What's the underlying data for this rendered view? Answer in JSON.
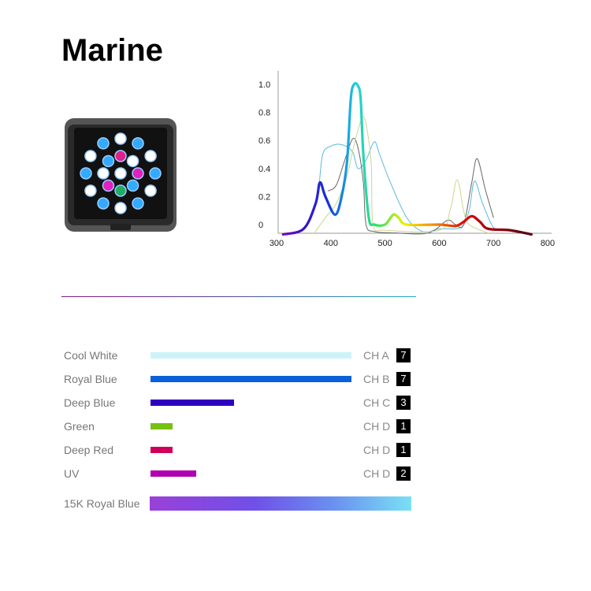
{
  "title": "Marine",
  "chart_data": {
    "type": "line",
    "xlim": [
      300,
      800
    ],
    "ylim": [
      0,
      1.0
    ],
    "x_ticks": [
      "300",
      "400",
      "500",
      "600",
      "700",
      "800"
    ],
    "y_ticks": [
      "0",
      "0.2",
      "0.4",
      "0.6",
      "0.8",
      "1.0"
    ],
    "grid": false,
    "series": [
      {
        "color": "#5ab8e0",
        "points": [
          [
            378,
            0.25
          ],
          [
            385,
            0.5
          ],
          [
            400,
            0.56
          ],
          [
            420,
            0.57
          ],
          [
            440,
            0.52
          ],
          [
            450,
            0.4
          ],
          [
            465,
            0.46
          ],
          [
            480,
            0.59
          ],
          [
            490,
            0.5
          ],
          [
            510,
            0.3
          ],
          [
            540,
            0.05
          ],
          [
            570,
            -0.05
          ],
          [
            600,
            -0.03
          ],
          [
            640,
            -0.02
          ],
          [
            655,
            0.1
          ],
          [
            665,
            0.31
          ],
          [
            680,
            0.15
          ],
          [
            700,
            -0.02
          ],
          [
            720,
            -0.04
          ]
        ]
      },
      {
        "color": "#666666",
        "points": [
          [
            395,
            0.24
          ],
          [
            410,
            0.28
          ],
          [
            425,
            0.45
          ],
          [
            440,
            0.61
          ],
          [
            450,
            0.55
          ],
          [
            460,
            0.3
          ],
          [
            465,
            0.0
          ],
          [
            480,
            -0.05
          ],
          [
            520,
            -0.06
          ],
          [
            580,
            -0.06
          ],
          [
            615,
            0.03
          ],
          [
            630,
            0.0
          ],
          [
            645,
            0.0
          ],
          [
            660,
            0.3
          ],
          [
            670,
            0.47
          ],
          [
            685,
            0.25
          ],
          [
            700,
            0.05
          ]
        ]
      },
      {
        "color": "#c8d890",
        "points": [
          [
            370,
            -0.06
          ],
          [
            390,
            0.05
          ],
          [
            410,
            0.15
          ],
          [
            430,
            0.35
          ],
          [
            445,
            0.6
          ],
          [
            460,
            0.77
          ],
          [
            470,
            0.6
          ],
          [
            475,
            0.4
          ],
          [
            478,
            0.0
          ],
          [
            500,
            -0.04
          ],
          [
            600,
            -0.04
          ],
          [
            620,
            0.1
          ],
          [
            633,
            0.32
          ],
          [
            645,
            0.1
          ],
          [
            655,
            0.0
          ],
          [
            690,
            -0.06
          ]
        ]
      },
      {
        "color": "spectrum",
        "points": [
          [
            312,
            -0.07
          ],
          [
            350,
            -0.03
          ],
          [
            372,
            0.15
          ],
          [
            380,
            0.3
          ],
          [
            390,
            0.2
          ],
          [
            408,
            0.07
          ],
          [
            420,
            0.2
          ],
          [
            430,
            0.45
          ],
          [
            437,
            0.9
          ],
          [
            443,
            1.0
          ],
          [
            450,
            0.99
          ],
          [
            455,
            0.9
          ],
          [
            460,
            0.5
          ],
          [
            470,
            0.05
          ],
          [
            480,
            0.0
          ],
          [
            500,
            0.0
          ],
          [
            515,
            0.07
          ],
          [
            525,
            0.05
          ],
          [
            540,
            0.0
          ],
          [
            600,
            0.0
          ],
          [
            630,
            -0.01
          ],
          [
            645,
            0.02
          ],
          [
            660,
            0.06
          ],
          [
            675,
            0.02
          ],
          [
            690,
            -0.03
          ],
          [
            730,
            -0.04
          ],
          [
            770,
            -0.07
          ]
        ]
      }
    ]
  },
  "channels": [
    {
      "label": "Cool White",
      "channel": "CH A",
      "value": "7",
      "level": 7,
      "color": "#ccf4f8"
    },
    {
      "label": "Royal Blue",
      "channel": "CH B",
      "value": "7",
      "level": 7,
      "color": "#0a60d8"
    },
    {
      "label": "Deep Blue",
      "channel": "CH C",
      "value": "3",
      "level": 2.9,
      "color": "#3000c0"
    },
    {
      "label": "Green",
      "channel": "CH D",
      "value": "1",
      "level": 0.77,
      "color": "#78c010"
    },
    {
      "label": "Deep Red",
      "channel": "CH D",
      "value": "1",
      "level": 0.77,
      "color": "#d00058"
    },
    {
      "label": "UV",
      "channel": "CH D",
      "value": "2",
      "level": 1.6,
      "color": "#b000b0"
    }
  ],
  "spectrum_label": "15K Royal Blue"
}
